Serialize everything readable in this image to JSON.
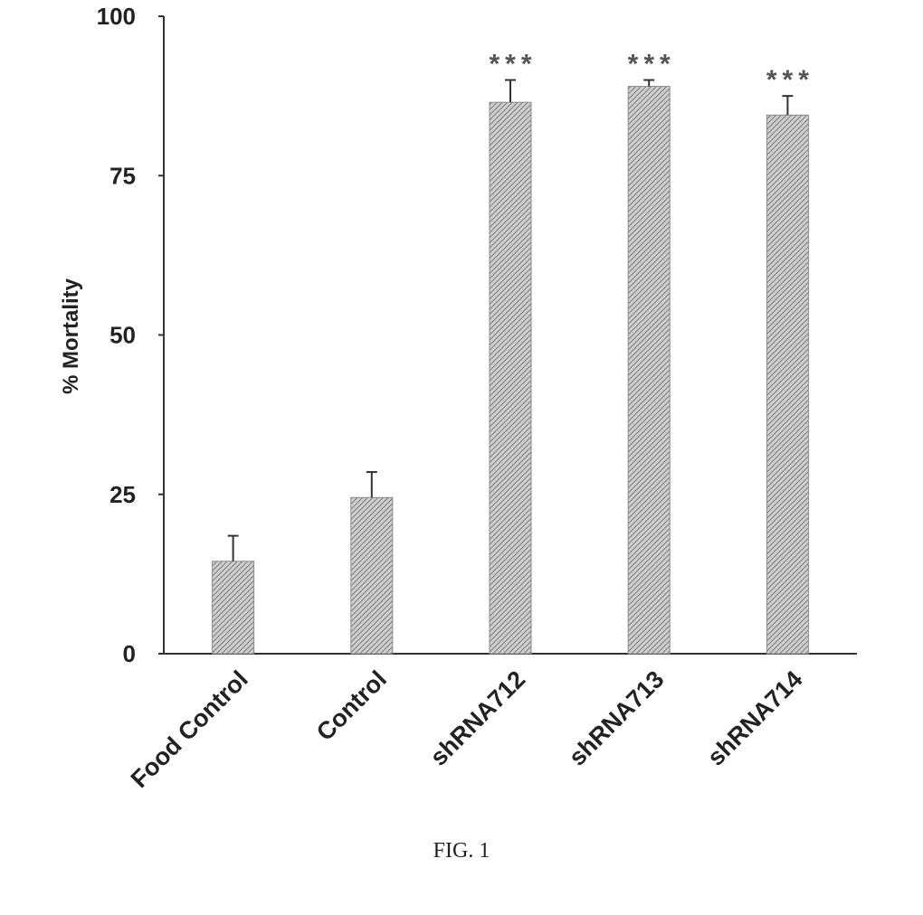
{
  "chart_data": {
    "type": "bar",
    "title": "",
    "xlabel": "",
    "ylabel": "% Mortality",
    "ylim": [
      0,
      100
    ],
    "yticks": [
      "0",
      "25",
      "50",
      "75",
      "100"
    ],
    "categories": [
      "Food Control",
      "Control",
      "shRNA712",
      "shRNA713",
      "shRNA714"
    ],
    "values": [
      14.5,
      24.5,
      86.5,
      89,
      84.5
    ],
    "errors": [
      4,
      4,
      3.5,
      1,
      3
    ],
    "significance": [
      "",
      "",
      "***",
      "***",
      "***"
    ],
    "grid": false,
    "bar_color": "#a8a8a8"
  },
  "caption": "FIG. 1"
}
